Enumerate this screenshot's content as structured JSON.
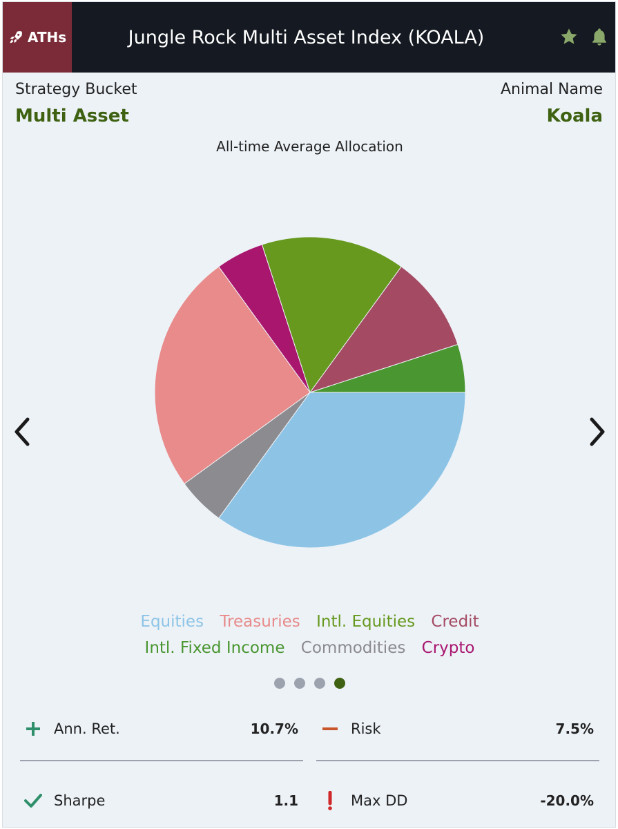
{
  "header": {
    "badge_label": "ATHs",
    "title": "Jungle Rock Multi Asset Index (KOALA)"
  },
  "info": {
    "strategy_label": "Strategy Bucket",
    "strategy_value": "Multi Asset",
    "animal_label": "Animal Name",
    "animal_value": "Koala"
  },
  "chart_data": {
    "type": "pie",
    "title": "All-time Average Allocation",
    "slices": [
      {
        "name": "Intl. Fixed Income",
        "value": 5,
        "color": "#4a9631"
      },
      {
        "name": "Equities",
        "value": 35,
        "color": "#8dc4e6"
      },
      {
        "name": "Commodities",
        "value": 5,
        "color": "#8c8b8f"
      },
      {
        "name": "Treasuries",
        "value": 25,
        "color": "#e88b8a"
      },
      {
        "name": "Crypto",
        "value": 5,
        "color": "#a9166e"
      },
      {
        "name": "Intl. Equities",
        "value": 15,
        "color": "#66991e"
      },
      {
        "name": "Credit",
        "value": 10,
        "color": "#a44b63"
      }
    ],
    "legend": [
      {
        "name": "Equities",
        "color": "#8dc4e6"
      },
      {
        "name": "Treasuries",
        "color": "#e88b8a"
      },
      {
        "name": "Intl. Equities",
        "color": "#66991e"
      },
      {
        "name": "Credit",
        "color": "#a44b63"
      },
      {
        "name": "Intl. Fixed Income",
        "color": "#4a9631"
      },
      {
        "name": "Commodities",
        "color": "#8c8b8f"
      },
      {
        "name": "Crypto",
        "color": "#a9166e"
      }
    ],
    "legend_placement": "bottom"
  },
  "pager": {
    "count": 4,
    "active": 4
  },
  "stats": {
    "ann_ret_label": "Ann. Ret.",
    "ann_ret_value": "10.7%",
    "risk_label": "Risk",
    "risk_value": "7.5%",
    "sharpe_label": "Sharpe",
    "sharpe_value": "1.1",
    "max_dd_label": "Max DD",
    "max_dd_value": "-20.0%"
  },
  "colors": {
    "header_bg": "#151a22",
    "badge_bg": "#7b2b37",
    "accent_green": "#3f6212",
    "star": "#8aa86a",
    "plus": "#2f8f6a",
    "risk": "#c9552b",
    "check": "#2f8f6a",
    "alert": "#d02828"
  }
}
